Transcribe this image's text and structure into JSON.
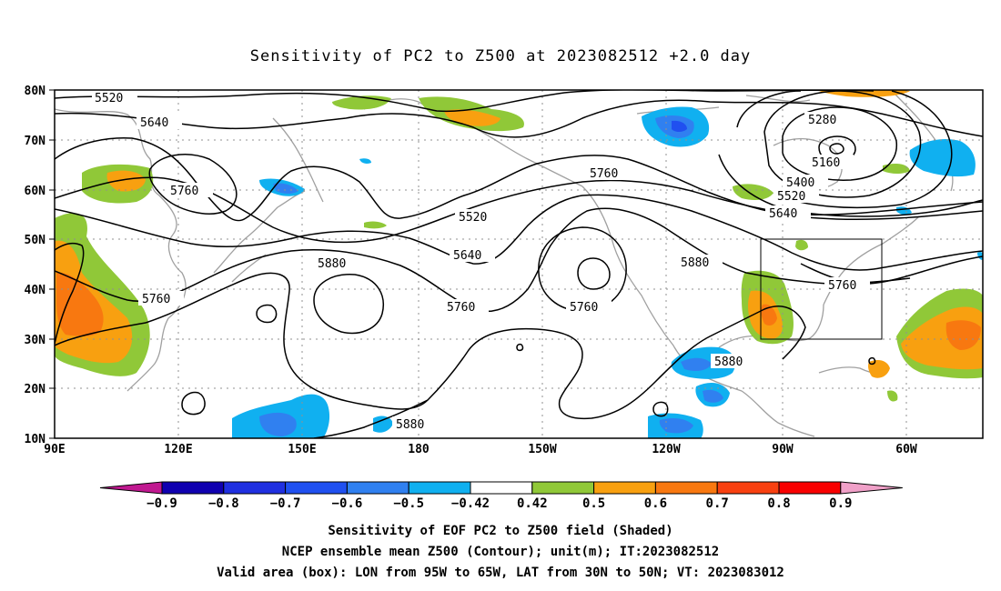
{
  "title": "Sensitivity of PC2 to Z500 at 2023082512 +2.0 day",
  "lat_labels": [
    "80N",
    "70N",
    "60N",
    "50N",
    "40N",
    "30N",
    "20N",
    "10N"
  ],
  "lon_labels": [
    "90E",
    "120E",
    "150E",
    "180",
    "150W",
    "120W",
    "90W",
    "60W"
  ],
  "contour_labels": [
    {
      "text": "5520",
      "id": "contour-5520-nw"
    },
    {
      "text": "5640",
      "id": "contour-5640-nw"
    },
    {
      "text": "5760",
      "id": "contour-5760-siberia"
    },
    {
      "text": "5760",
      "id": "contour-5760-china"
    },
    {
      "text": "5880",
      "id": "contour-5880-westpac"
    },
    {
      "text": "5520",
      "id": "contour-5520-bering"
    },
    {
      "text": "5640",
      "id": "contour-5640-gulf"
    },
    {
      "text": "5760",
      "id": "contour-5760-westcoast"
    },
    {
      "text": "5760",
      "id": "contour-5760-nepac"
    },
    {
      "text": "5760",
      "id": "contour-5760-canada"
    },
    {
      "text": "5880",
      "id": "contour-5880-us"
    },
    {
      "text": "5880",
      "id": "contour-5880-pacific"
    },
    {
      "text": "5880",
      "id": "contour-5880-mexico"
    },
    {
      "text": "5280",
      "id": "contour-5280-low"
    },
    {
      "text": "5160",
      "id": "contour-5160-low"
    },
    {
      "text": "5400",
      "id": "contour-5400-low"
    },
    {
      "text": "5520",
      "id": "contour-5520-low"
    },
    {
      "text": "5640",
      "id": "contour-5640-low"
    },
    {
      "text": "5760",
      "id": "contour-5760-east"
    }
  ],
  "colorbar": {
    "labels": [
      "−0.9",
      "−0.8",
      "−0.7",
      "−0.6",
      "−0.5",
      "−0.42",
      "0.42",
      "0.5",
      "0.6",
      "0.7",
      "0.8",
      "0.9"
    ],
    "colors": [
      "#1000b0",
      "#2030e0",
      "#2050f0",
      "#3080f0",
      "#10b0f0",
      "#ffffff",
      "#90c838",
      "#f8a010",
      "#f87810",
      "#f84010",
      "#f80000"
    ],
    "low_end_color": "#c01890",
    "high_end_color": "#f0a0c8"
  },
  "captions": [
    "Sensitivity of EOF PC2 to Z500 field (Shaded)",
    "NCEP ensemble mean Z500 (Contour); unit(m); IT:2023082512",
    "Valid area (box): LON from 95W to 65W, LAT from 30N to 50N; VT: 2023083012"
  ],
  "valid_box": {
    "lon_range": [
      "95W",
      "65W"
    ],
    "lat_range": [
      "30N",
      "50N"
    ]
  }
}
